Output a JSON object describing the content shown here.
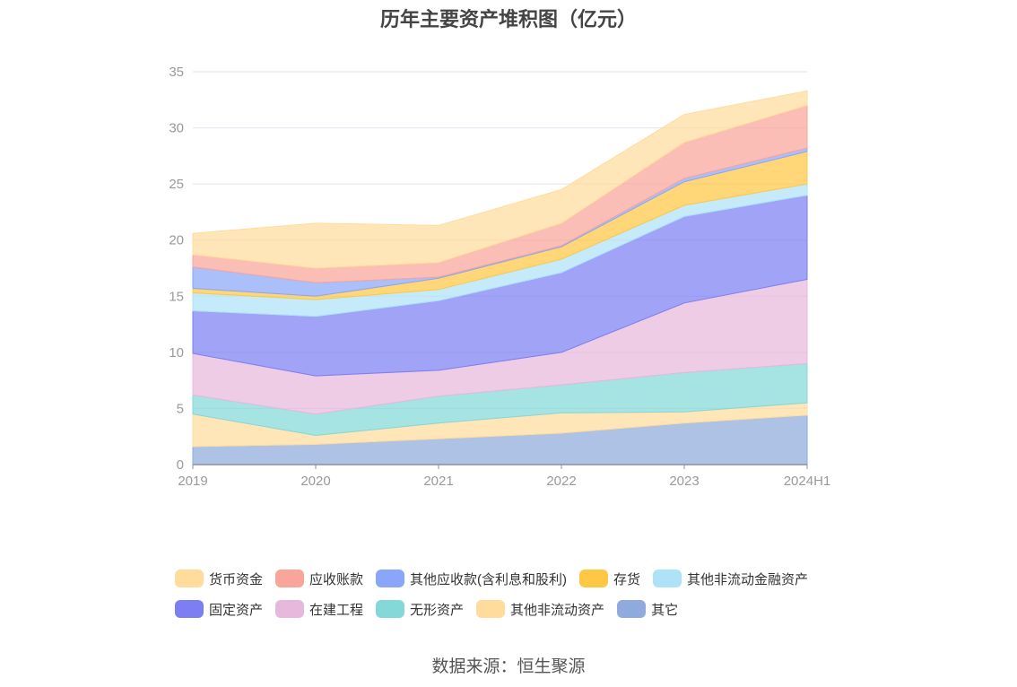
{
  "title": "历年主要资产堆积图（亿元）",
  "source": "数据来源：恒生聚源",
  "chart_data": {
    "type": "area",
    "stacked": true,
    "title": "历年主要资产堆积图（亿元）",
    "categories": [
      "2019",
      "2020",
      "2021",
      "2022",
      "2023",
      "2024H1"
    ],
    "y_ticks": [
      "0",
      "5",
      "10",
      "15",
      "20",
      "25",
      "30",
      "35"
    ],
    "ylim": [
      0,
      35
    ],
    "grid": true,
    "legend_position": "bottom",
    "series": [
      {
        "name": "其它",
        "color": "#8faadc",
        "values": [
          1.6,
          1.8,
          2.3,
          2.8,
          3.7,
          4.4
        ]
      },
      {
        "name": "其他非流动资产",
        "color": "#ffdc9c",
        "values": [
          2.9,
          0.8,
          1.4,
          1.8,
          1.0,
          1.1
        ]
      },
      {
        "name": "无形资产",
        "color": "#84d8d8",
        "values": [
          1.7,
          1.9,
          2.4,
          2.5,
          3.5,
          3.5
        ]
      },
      {
        "name": "在建工程",
        "color": "#e8b8dc",
        "values": [
          3.7,
          3.4,
          2.3,
          2.9,
          6.2,
          7.5
        ]
      },
      {
        "name": "固定资产",
        "color": "#7b7ff2",
        "values": [
          3.8,
          5.3,
          6.2,
          7.1,
          7.7,
          7.5
        ]
      },
      {
        "name": "其他非流动金融资产",
        "color": "#aee2f7",
        "values": [
          1.6,
          1.5,
          1.0,
          1.2,
          1.0,
          1.0
        ]
      },
      {
        "name": "存货",
        "color": "#ffc844",
        "values": [
          0.4,
          0.3,
          1.0,
          1.1,
          2.1,
          2.9
        ]
      },
      {
        "name": "其他应收款(含利息和股利)",
        "color": "#8aa6fa",
        "values": [
          1.9,
          1.2,
          0.1,
          0.1,
          0.3,
          0.3
        ]
      },
      {
        "name": "应收账款",
        "color": "#f9a59a",
        "values": [
          1.1,
          1.3,
          1.3,
          2.0,
          3.2,
          3.8
        ]
      },
      {
        "name": "货币资金",
        "color": "#ffdc9c",
        "values": [
          1.9,
          4.0,
          3.3,
          3.0,
          2.5,
          1.3
        ]
      }
    ]
  },
  "legend": {
    "rows": [
      [
        {
          "label": "货币资金",
          "color": "#ffdc9c"
        },
        {
          "label": "应收账款",
          "color": "#f9a59a"
        },
        {
          "label": "其他应收款(含利息和股利)",
          "color": "#8aa6fa"
        },
        {
          "label": "存货",
          "color": "#ffc844"
        },
        {
          "label": "其他非流动金融资产",
          "color": "#aee2f7"
        }
      ],
      [
        {
          "label": "固定资产",
          "color": "#7b7ff2"
        },
        {
          "label": "在建工程",
          "color": "#e8b8dc"
        },
        {
          "label": "无形资产",
          "color": "#84d8d8"
        },
        {
          "label": "其他非流动资产",
          "color": "#ffdc9c"
        },
        {
          "label": "其它",
          "color": "#8faadc"
        }
      ]
    ]
  }
}
